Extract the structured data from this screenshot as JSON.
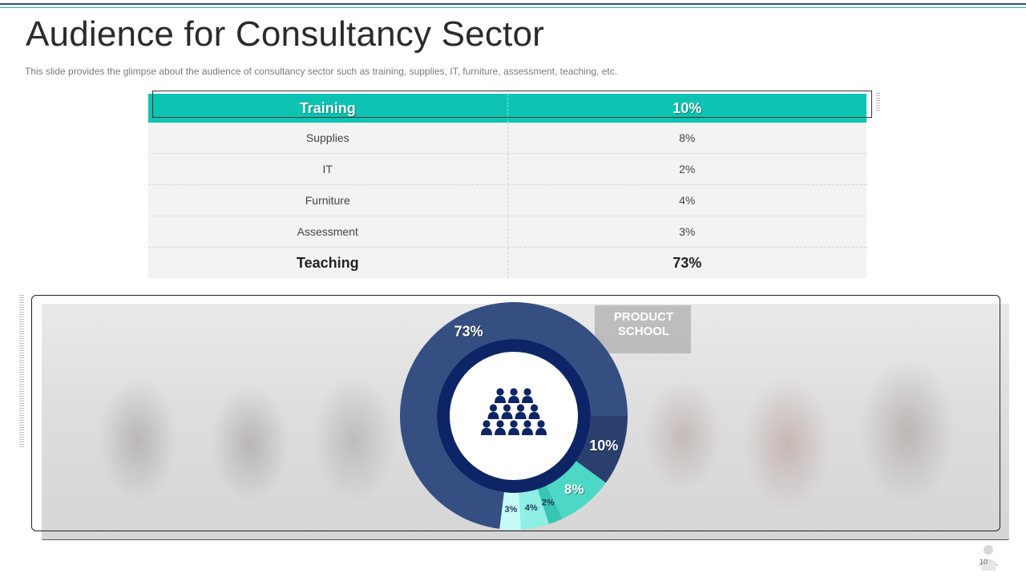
{
  "slide": {
    "title": "Audience for Consultancy Sector",
    "subtitle": "This slide provides  the glimpse about the audience of consultancy sector such as training, supplies, IT, furniture,  assessment, teaching, etc.",
    "page_number": "10"
  },
  "table": {
    "rows": [
      {
        "label": "Training",
        "value": "10%"
      },
      {
        "label": "Supplies",
        "value": "8%"
      },
      {
        "label": "IT",
        "value": "2%"
      },
      {
        "label": "Furniture",
        "value": "4%"
      },
      {
        "label": "Assessment",
        "value": "3%"
      },
      {
        "label": "Teaching",
        "value": "73%"
      }
    ]
  },
  "photo": {
    "sign_text": "PRODUCT SCHOOL"
  },
  "chart_data": {
    "type": "pie",
    "style": "donut",
    "categories": [
      "Teaching",
      "Training",
      "Supplies",
      "IT",
      "Furniture",
      "Assessment"
    ],
    "values": [
      73,
      10,
      8,
      2,
      4,
      3
    ],
    "labels": [
      "73%",
      "10%",
      "8%",
      "2%",
      "4%",
      "3%"
    ],
    "colors": [
      "#354f82",
      "#2b3f6e",
      "#4dd8c5",
      "#38c4b2",
      "#8ef0e2",
      "#c6fbf5"
    ],
    "center_icon": "people-group-icon"
  },
  "colors": {
    "accent": "#0cc4b1",
    "navy": "#354f82",
    "inner_ring": "#0d2566"
  }
}
